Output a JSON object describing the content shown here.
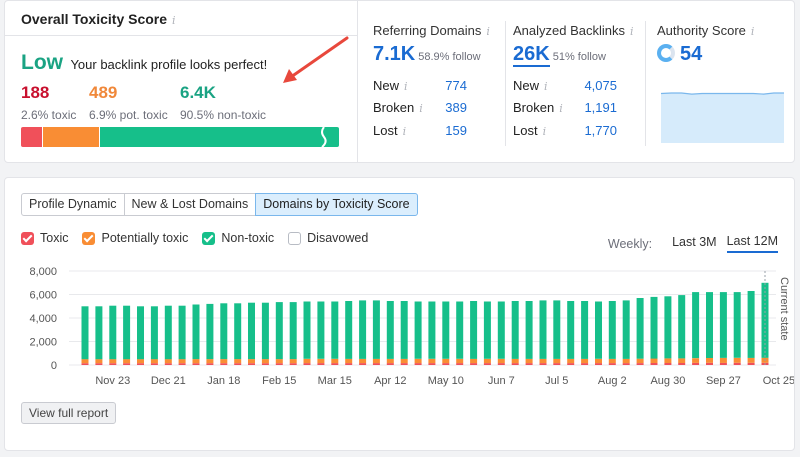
{
  "overall": {
    "title": "Overall Toxicity Score",
    "status_level": "Low",
    "status_message": "Your backlink profile looks perfect!",
    "metrics": [
      {
        "value": "188",
        "label": "2.6% toxic",
        "color": "#c8102e"
      },
      {
        "value": "489",
        "label": "6.9% pot. toxic",
        "color": "#f0883a"
      },
      {
        "value": "6.4K",
        "label": "90.5% non-toxic",
        "color": "#1aa383"
      }
    ],
    "bar": [
      {
        "name": "toxic",
        "percent": 2.6,
        "color": "#f0505a"
      },
      {
        "name": "potentially-toxic",
        "percent": 6.9,
        "color": "#f98d34"
      },
      {
        "name": "non-toxic",
        "percent": 90.5,
        "color": "#16bf8a"
      }
    ]
  },
  "referring": {
    "title": "Referring Domains",
    "value": "7.1K",
    "sub": "58.9% follow",
    "rows": [
      {
        "label": "New",
        "value": "774"
      },
      {
        "label": "Broken",
        "value": "389"
      },
      {
        "label": "Lost",
        "value": "159"
      }
    ]
  },
  "backlinks": {
    "title": "Analyzed Backlinks",
    "value": "26K",
    "sub": "51% follow",
    "rows": [
      {
        "label": "New",
        "value": "4,075"
      },
      {
        "label": "Broken",
        "value": "1,191"
      },
      {
        "label": "Lost",
        "value": "1,770"
      }
    ]
  },
  "authority": {
    "title": "Authority Score",
    "value": "54"
  },
  "tabs": [
    "Profile Dynamic",
    "New & Lost Domains",
    "Domains by Toxicity Score"
  ],
  "active_tab": 2,
  "legend": [
    {
      "label": "Toxic",
      "color": "#f0505a",
      "checked": true
    },
    {
      "label": "Potentially toxic",
      "color": "#f98d34",
      "checked": true
    },
    {
      "label": "Non-toxic",
      "color": "#16bf8a",
      "checked": true
    },
    {
      "label": "Disavowed",
      "color": "#ffffff",
      "checked": false
    }
  ],
  "period": {
    "label": "Weekly:",
    "options": [
      "Last 3M",
      "Last 12M"
    ],
    "active": 1
  },
  "view_full_report": "View full report",
  "chart_data": {
    "type": "bar",
    "stacked": true,
    "y_ticks": [
      "0",
      "2,000",
      "4,000",
      "6,000",
      "8,000"
    ],
    "ylim": [
      0,
      8000
    ],
    "x_ticks": [
      "Nov 23",
      "Dec 21",
      "Jan 18",
      "Feb 15",
      "Mar 15",
      "Apr 12",
      "May 10",
      "Jun 7",
      "Jul 5",
      "Aug 2",
      "Aug 30",
      "Sep 27",
      "Oct 25"
    ],
    "x_tick_positions": [
      2,
      6,
      10,
      14,
      18,
      22,
      26,
      30,
      34,
      38,
      42,
      46,
      50
    ],
    "current_state_label": "Current state",
    "series": [
      {
        "name": "Toxic",
        "color": "#f0505a",
        "values": [
          150,
          150,
          150,
          150,
          150,
          150,
          150,
          150,
          150,
          150,
          150,
          150,
          150,
          150,
          150,
          150,
          160,
          160,
          160,
          160,
          160,
          160,
          160,
          160,
          160,
          160,
          160,
          160,
          160,
          160,
          160,
          160,
          160,
          160,
          160,
          160,
          160,
          160,
          160,
          160,
          165,
          170,
          175,
          175,
          180,
          185,
          185,
          185,
          185,
          190
        ]
      },
      {
        "name": "Potentially toxic",
        "color": "#f98d34",
        "values": [
          350,
          350,
          350,
          350,
          350,
          350,
          350,
          350,
          350,
          350,
          350,
          350,
          350,
          350,
          350,
          350,
          360,
          360,
          360,
          360,
          360,
          360,
          360,
          360,
          360,
          360,
          360,
          360,
          360,
          360,
          360,
          360,
          360,
          360,
          360,
          360,
          360,
          360,
          360,
          360,
          370,
          380,
          390,
          390,
          400,
          410,
          415,
          420,
          425,
          430
        ]
      },
      {
        "name": "Non-toxic",
        "color": "#16bf8a",
        "values": [
          4500,
          4500,
          4550,
          4550,
          4500,
          4500,
          4550,
          4550,
          4650,
          4700,
          4750,
          4750,
          4800,
          4800,
          4850,
          4850,
          4880,
          4880,
          4880,
          4930,
          4980,
          4980,
          4930,
          4930,
          4880,
          4880,
          4880,
          4880,
          4930,
          4880,
          4880,
          4930,
          4930,
          4980,
          4980,
          4930,
          4930,
          4880,
          4930,
          4980,
          5165,
          5250,
          5285,
          5385,
          5620,
          5605,
          5600,
          5595,
          5690,
          6380
        ]
      }
    ]
  },
  "authority_chart": {
    "values": [
      0.96,
      0.97,
      0.97,
      0.95,
      0.96,
      0.96,
      0.96,
      0.96,
      0.96,
      0.96,
      0.95,
      0.97,
      0.97
    ]
  }
}
